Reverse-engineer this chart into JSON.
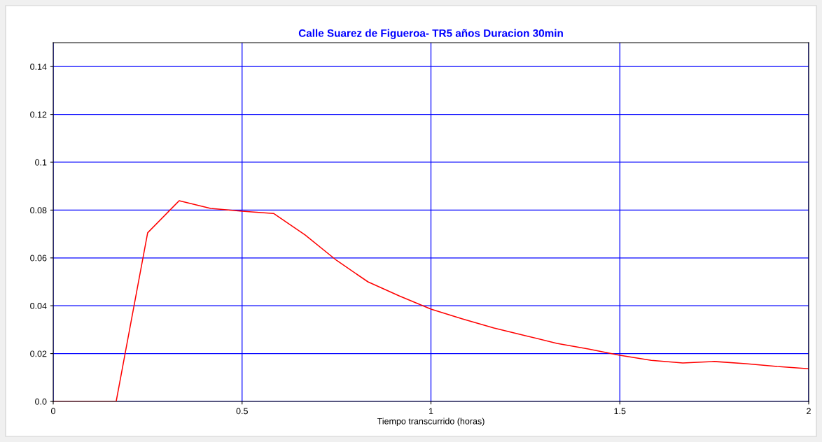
{
  "chart_data": {
    "type": "line",
    "title": "Calle Suarez de Figueroa- TR5 años Duracion 30min",
    "xlabel": "Tiempo transcurrido (horas)",
    "x": [
      0,
      0.0833,
      0.1667,
      0.25,
      0.3333,
      0.4167,
      0.5,
      0.5833,
      0.6667,
      0.75,
      0.8333,
      0.9167,
      1.0,
      1.0833,
      1.1667,
      1.25,
      1.3333,
      1.4167,
      1.5,
      1.5833,
      1.6667,
      1.75,
      1.8333,
      1.9167,
      2.0
    ],
    "series": [
      {
        "color": "#ff0000",
        "values": [
          0,
          0,
          0,
          0.0705,
          0.0839,
          0.0807,
          0.0795,
          0.0786,
          0.0696,
          0.059,
          0.05,
          0.0441,
          0.0386,
          0.0345,
          0.0307,
          0.0275,
          0.0243,
          0.0219,
          0.0193,
          0.0172,
          0.0161,
          0.0167,
          0.0158,
          0.0146,
          0.0137
        ]
      }
    ],
    "xlim": [
      0,
      2
    ],
    "xticks": [
      0,
      0.5,
      1,
      1.5,
      2
    ],
    "ylim": [
      0,
      0.15
    ],
    "yticks": [
      {
        "value": 0,
        "label": "0.0"
      },
      0.02,
      0.04,
      0.06,
      0.08,
      0.1,
      0.12,
      0.14
    ],
    "grid": true,
    "marker": "none",
    "line_style": "solid"
  }
}
